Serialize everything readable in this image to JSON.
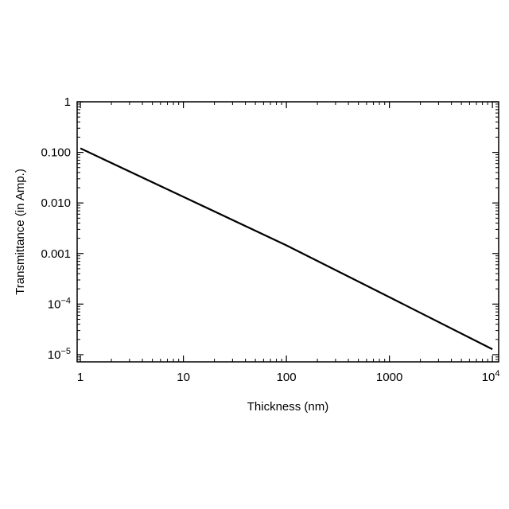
{
  "chart_data": {
    "type": "line",
    "xlabel": "Thickness (nm)",
    "ylabel": "Transmittance (in Amp.)",
    "xscale": "log",
    "yscale": "log",
    "xlim": [
      0.93,
      11500
    ],
    "ylim": [
      7.2e-06,
      1
    ],
    "grid": false,
    "legend": "none",
    "xticks": [
      {
        "value": 1,
        "base": "1",
        "exp": ""
      },
      {
        "value": 10,
        "base": "10",
        "exp": ""
      },
      {
        "value": 100,
        "base": "100",
        "exp": ""
      },
      {
        "value": 1000,
        "base": "1000",
        "exp": ""
      },
      {
        "value": 10000,
        "base": "10",
        "exp": "4"
      }
    ],
    "yticks": [
      {
        "value": 1,
        "base": "1",
        "exp": ""
      },
      {
        "value": 0.1,
        "base": "0.100",
        "exp": ""
      },
      {
        "value": 0.01,
        "base": "0.010",
        "exp": ""
      },
      {
        "value": 0.001,
        "base": "0.001",
        "exp": ""
      },
      {
        "value": 0.0001,
        "base": "10",
        "exp": "−4"
      },
      {
        "value": 1e-05,
        "base": "10",
        "exp": "−5"
      }
    ],
    "series": [
      {
        "x": [
          1,
          10,
          100,
          1000,
          10000
        ],
        "y": [
          0.12,
          0.0132,
          0.00145,
          0.000137,
          1.28e-05
        ],
        "color": "#000000"
      }
    ]
  }
}
